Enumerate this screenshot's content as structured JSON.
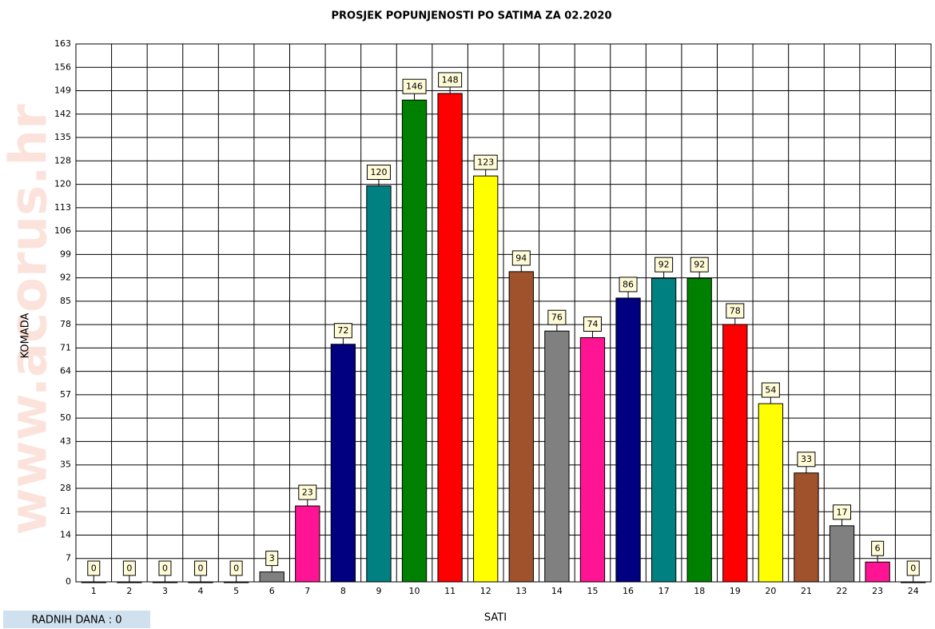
{
  "chart_data": {
    "type": "bar",
    "title": "PROSJEK POPUNJENOSTI PO SATIMA ZA 02.2020",
    "y_label": "KOMADA",
    "x_label": "SATI",
    "footer": "RADNIH DANA : 0",
    "watermark": "www.acorus.hr",
    "categories": [
      "1",
      "2",
      "3",
      "4",
      "5",
      "6",
      "7",
      "8",
      "9",
      "10",
      "11",
      "12",
      "13",
      "14",
      "15",
      "16",
      "17",
      "18",
      "19",
      "20",
      "21",
      "22",
      "23",
      "24"
    ],
    "values": [
      0,
      0,
      0,
      0,
      0,
      3,
      23,
      72,
      120,
      146,
      148,
      123,
      94,
      76,
      74,
      86,
      92,
      92,
      78,
      54,
      33,
      17,
      6,
      0
    ],
    "colors": [
      "#008080",
      "#008000",
      "#ff0000",
      "#ffff00",
      "#a0522d",
      "#808080",
      "#ff1493",
      "#000080",
      "#008080",
      "#008000",
      "#ff0000",
      "#ffff00",
      "#a0522d",
      "#808080",
      "#ff1493",
      "#000080",
      "#008080",
      "#008000",
      "#ff0000",
      "#ffff00",
      "#a0522d",
      "#808080",
      "#ff1493",
      "#000080"
    ],
    "ylim": [
      0,
      163
    ],
    "yticks": [
      0,
      {
        "value": 7.087,
        "label": "7"
      },
      {
        "value": 14.174,
        "label": "14"
      },
      {
        "value": 21.261,
        "label": "21"
      },
      {
        "value": 28.348,
        "label": "28"
      },
      {
        "value": 35.435,
        "label": "35"
      },
      {
        "value": 42.522,
        "label": "43"
      },
      {
        "value": 49.609,
        "label": "50"
      },
      {
        "value": 56.696,
        "label": "57"
      },
      {
        "value": 63.783,
        "label": "64"
      },
      {
        "value": 70.87,
        "label": "71"
      },
      {
        "value": 77.957,
        "label": "78"
      },
      {
        "value": 85.043,
        "label": "85"
      },
      {
        "value": 92.13,
        "label": "92"
      },
      {
        "value": 99.217,
        "label": "99"
      },
      {
        "value": 106.304,
        "label": "106"
      },
      {
        "value": 113.391,
        "label": "113"
      },
      {
        "value": 120.478,
        "label": "120"
      },
      {
        "value": 127.565,
        "label": "128"
      },
      {
        "value": 134.652,
        "label": "135"
      },
      {
        "value": 141.739,
        "label": "142"
      },
      {
        "value": 148.826,
        "label": "149"
      },
      {
        "value": 155.913,
        "label": "156"
      },
      163
    ],
    "grid": true
  }
}
